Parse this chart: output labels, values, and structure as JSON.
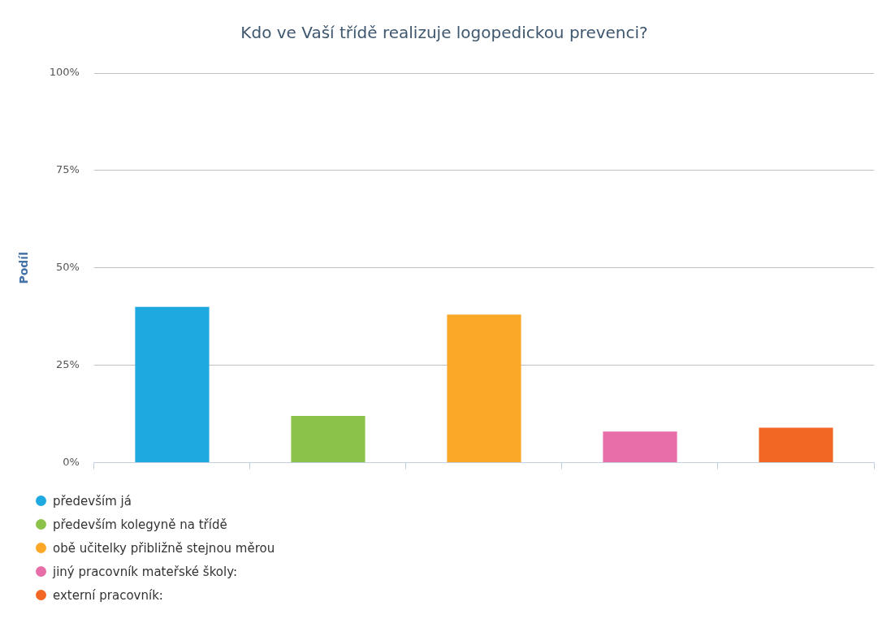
{
  "chart_data": {
    "type": "bar",
    "title": "Kdo ve Vaší třídě realizuje logopedickou prevenci?",
    "ylabel": "Podíl",
    "categories": [
      null,
      null,
      null,
      null,
      null
    ],
    "series": [
      {
        "name": "především já",
        "color": "#1fa9e1",
        "values": [
          40,
          null,
          null,
          null,
          null
        ]
      },
      {
        "name": "především kolegyně na třídě",
        "color": "#8bc34a",
        "values": [
          null,
          12,
          null,
          null,
          null
        ]
      },
      {
        "name": "obě učitelky přibližně stejnou měrou",
        "color": "#fba828",
        "values": [
          null,
          null,
          38,
          null,
          null
        ]
      },
      {
        "name": "jiný pracovník mateřské školy:",
        "color": "#e76ea8",
        "values": [
          null,
          null,
          null,
          8,
          null
        ]
      },
      {
        "name": "externí pracovník:",
        "color": "#f26724",
        "values": [
          null,
          null,
          null,
          null,
          9
        ]
      }
    ],
    "ylim": [
      0,
      100
    ],
    "yticks": [
      {
        "value": 0,
        "label": "0%"
      },
      {
        "value": 25,
        "label": "25%"
      },
      {
        "value": 50,
        "label": "50%"
      },
      {
        "value": 75,
        "label": "75%"
      },
      {
        "value": 100,
        "label": "100%"
      }
    ],
    "grid": "y",
    "legend": "bottom left"
  }
}
